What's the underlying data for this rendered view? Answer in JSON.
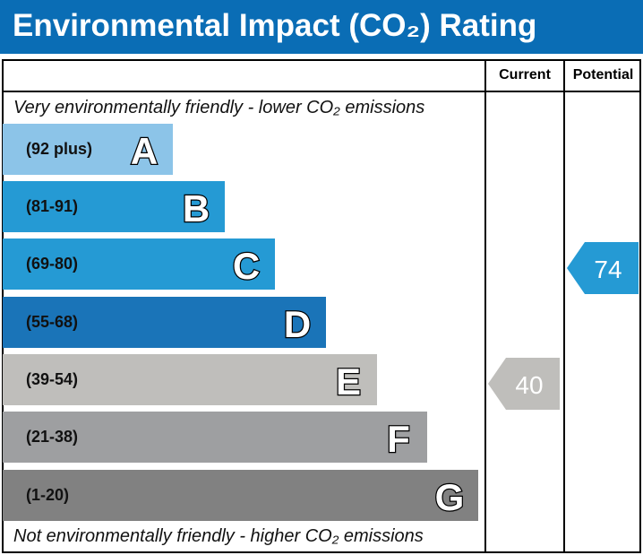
{
  "title": "Environmental Impact (CO₂) Rating",
  "columns": {
    "current": "Current",
    "potential": "Potential"
  },
  "notes": {
    "top": "Very environmentally friendly - lower CO₂ emissions",
    "bottom": "Not environmentally friendly - higher CO₂ emissions"
  },
  "chart_data": {
    "type": "bar",
    "bands": [
      {
        "letter": "A",
        "range": "(92 plus)",
        "color": "#8cc4e8"
      },
      {
        "letter": "B",
        "range": "(81-91)",
        "color": "#259ad4"
      },
      {
        "letter": "C",
        "range": "(69-80)",
        "color": "#259ad4"
      },
      {
        "letter": "D",
        "range": "(55-68)",
        "color": "#1a74b8"
      },
      {
        "letter": "E",
        "range": "(39-54)",
        "color": "#bfbebb"
      },
      {
        "letter": "F",
        "range": "(21-38)",
        "color": "#9e9fa1"
      },
      {
        "letter": "G",
        "range": "(1-20)",
        "color": "#818181"
      }
    ],
    "current": {
      "value": "40",
      "band": "E",
      "color": "#bfbebb"
    },
    "potential": {
      "value": "74",
      "band": "C",
      "color": "#259ad4"
    }
  }
}
